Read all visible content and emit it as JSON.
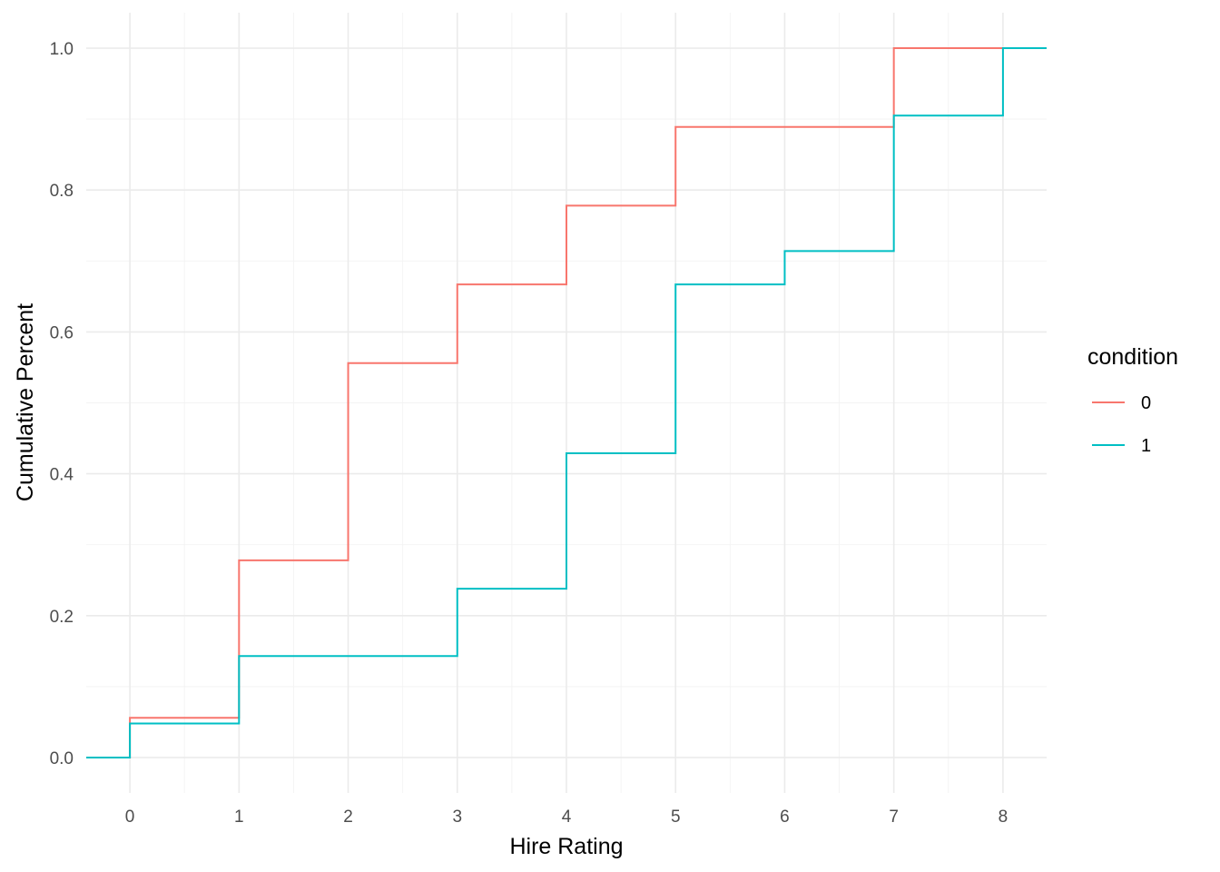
{
  "chart_data": {
    "type": "line",
    "step": true,
    "xlabel": "Hire Rating",
    "ylabel": "Cumulative Percent",
    "xlim": [
      -0.4,
      8.4
    ],
    "ylim": [
      -0.05,
      1.05
    ],
    "x_ticks": [
      0,
      1,
      2,
      3,
      4,
      5,
      6,
      7,
      8
    ],
    "y_ticks": [
      0.0,
      0.2,
      0.4,
      0.6,
      0.8,
      1.0
    ],
    "y_tick_labels": [
      "0.0",
      "0.2",
      "0.4",
      "0.6",
      "0.8",
      "1.0"
    ],
    "grid": true,
    "legend": {
      "title": "condition",
      "placement": "right",
      "entries": [
        "0",
        "1"
      ]
    },
    "series": [
      {
        "name": "0",
        "color": "#F8766D",
        "x": [
          0,
          1,
          2,
          3,
          4,
          5,
          7
        ],
        "y": [
          0.056,
          0.278,
          0.556,
          0.667,
          0.778,
          0.889,
          1.0
        ]
      },
      {
        "name": "1",
        "color": "#00BFC4",
        "x": [
          0,
          1,
          3,
          4,
          5,
          6,
          7,
          8
        ],
        "y": [
          0.048,
          0.143,
          0.238,
          0.429,
          0.667,
          0.714,
          0.905,
          1.0
        ]
      }
    ]
  }
}
